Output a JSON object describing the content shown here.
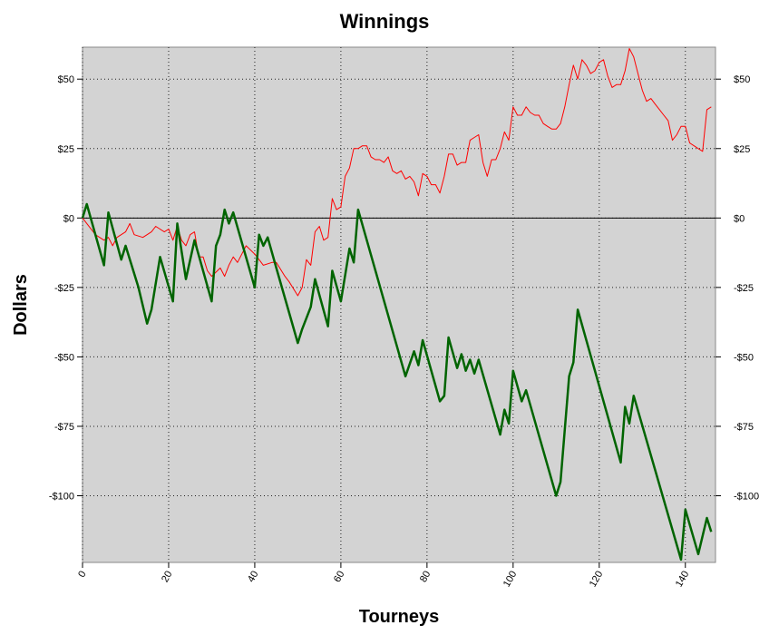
{
  "chart_data": {
    "type": "line",
    "title": "Winnings",
    "xlabel": "Tourneys",
    "ylabel": "Dollars",
    "xlim": [
      0,
      147
    ],
    "ylim": [
      -124,
      61.5
    ],
    "xticks": [
      0,
      20,
      40,
      60,
      80,
      100,
      120,
      140
    ],
    "yticks": [
      {
        "value": -100,
        "label": "-$100"
      },
      {
        "value": -75,
        "label": "-$75"
      },
      {
        "value": -50,
        "label": "-$50"
      },
      {
        "value": -25,
        "label": "-$25"
      },
      {
        "value": 0,
        "label": "$0"
      },
      {
        "value": 25,
        "label": "$25"
      },
      {
        "value": 50,
        "label": "$50"
      }
    ],
    "grid": true,
    "series": [
      {
        "color": "#ff0000",
        "linewidth": 1,
        "x": [
          0,
          3,
          5,
          6,
          7,
          8,
          10,
          11,
          12,
          14,
          15,
          16,
          17,
          19,
          20,
          21,
          22,
          23,
          24,
          25,
          26,
          27,
          28,
          29,
          30,
          32,
          33,
          34,
          35,
          36,
          38,
          40,
          41,
          42,
          44,
          45,
          47,
          48,
          50,
          51,
          52,
          53,
          54,
          55,
          56,
          57,
          58,
          59,
          60,
          61,
          62,
          63,
          64,
          65,
          66,
          67,
          68,
          69,
          70,
          71,
          72,
          73,
          74,
          75,
          76,
          77,
          78,
          79,
          80,
          81,
          82,
          83,
          84,
          85,
          86,
          87,
          88,
          89,
          90,
          91,
          92,
          93,
          94,
          95,
          96,
          97,
          98,
          99,
          100,
          101,
          102,
          103,
          104,
          105,
          106,
          107,
          108,
          109,
          110,
          111,
          112,
          113,
          114,
          115,
          116,
          117,
          118,
          119,
          120,
          121,
          122,
          123,
          124,
          125,
          126,
          127,
          128,
          129,
          130,
          131,
          132,
          133,
          134,
          135,
          136,
          137,
          138,
          139,
          140,
          141,
          142,
          143,
          144,
          145,
          146
        ],
        "values": [
          0,
          -6,
          -8,
          -7,
          -10,
          -7,
          -5,
          -2,
          -6,
          -7,
          -6,
          -5,
          -3,
          -5,
          -4,
          -8,
          -3,
          -8,
          -10,
          -6,
          -5,
          -14,
          -14,
          -19,
          -21,
          -18,
          -21,
          -17,
          -14,
          -16,
          -10,
          -13,
          -15,
          -17,
          -16,
          -16,
          -21,
          -23,
          -28,
          -25,
          -15,
          -17,
          -5,
          -3,
          -8,
          -7,
          7,
          3,
          4,
          15,
          18,
          25,
          25,
          26,
          26,
          22,
          21,
          21,
          20,
          22,
          17,
          16,
          17,
          14,
          15,
          13,
          8,
          16,
          15,
          12,
          12,
          9,
          15,
          23,
          23,
          19,
          20,
          20,
          28,
          29,
          30,
          20,
          15,
          21,
          21,
          25,
          31,
          28,
          40,
          37,
          37,
          40,
          38,
          37,
          37,
          34,
          33,
          32,
          32,
          34,
          40,
          48,
          55,
          50,
          57,
          55,
          52,
          53,
          56,
          57,
          51,
          47,
          48,
          48,
          53,
          61,
          58,
          52,
          46,
          42,
          43,
          41,
          39,
          37,
          35,
          28,
          30,
          33,
          33,
          27,
          26,
          25,
          24,
          39,
          40
        ]
      },
      {
        "color": "#006400",
        "linewidth": 2.5,
        "x": [
          0,
          1,
          5,
          6,
          9,
          10,
          13,
          15,
          16,
          18,
          21,
          22,
          24,
          26,
          30,
          31,
          32,
          33,
          34,
          35,
          40,
          41,
          42,
          43,
          45,
          50,
          51,
          53,
          54,
          57,
          58,
          60,
          62,
          63,
          64,
          75,
          77,
          78,
          79,
          83,
          84,
          85,
          87,
          88,
          89,
          90,
          91,
          92,
          97,
          98,
          99,
          100,
          102,
          103,
          110,
          111,
          113,
          114,
          115,
          125,
          126,
          127,
          128,
          139,
          140,
          143,
          145,
          146
        ],
        "values": [
          0,
          5,
          -17,
          2,
          -15,
          -10,
          -25,
          -38,
          -33,
          -14,
          -30,
          -2,
          -22,
          -8,
          -30,
          -10,
          -6,
          3,
          -2,
          2,
          -25,
          -6,
          -10,
          -7,
          -18,
          -45,
          -40,
          -32,
          -22,
          -39,
          -19,
          -30,
          -11,
          -16,
          3,
          -57,
          -48,
          -53,
          -44,
          -66,
          -64,
          -43,
          -54,
          -49,
          -55,
          -51,
          -56,
          -51,
          -78,
          -69,
          -74,
          -55,
          -66,
          -62,
          -100,
          -95,
          -57,
          -52,
          -33,
          -88,
          -68,
          -74,
          -64,
          -123,
          -105,
          -121,
          -108,
          -113
        ]
      }
    ]
  }
}
